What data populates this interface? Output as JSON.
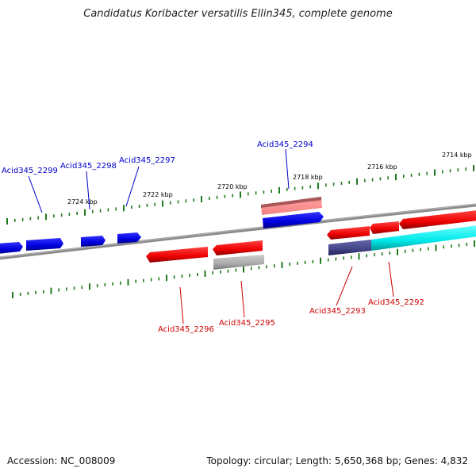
{
  "title": "Candidatus Koribacter versatilis Ellin345, complete genome",
  "footer": {
    "accession": "Accession: NC_008009",
    "summary": "Topology: circular; Length: 5,650,368 bp; Genes: 4,832"
  },
  "colors": {
    "backbone": "#7a7a7a",
    "tick": "#1f7a1f",
    "forward_label": "#0000cc",
    "reverse_label": "#cc0000"
  },
  "kbp_labels": [
    "2724 kbp",
    "2722 kbp",
    "2720 kbp",
    "2718 kbp",
    "2716 kbp",
    "2714 kbp"
  ],
  "genes": [
    {
      "label": "Acid345_2299"
    },
    {
      "label": "Acid345_2298"
    },
    {
      "label": "Acid345_2297"
    },
    {
      "label": "Acid345_2294"
    },
    {
      "label": "Acid345_2296"
    },
    {
      "label": "Acid345_2295"
    },
    {
      "label": "Acid345_2293"
    },
    {
      "label": "Acid345_2292"
    }
  ]
}
